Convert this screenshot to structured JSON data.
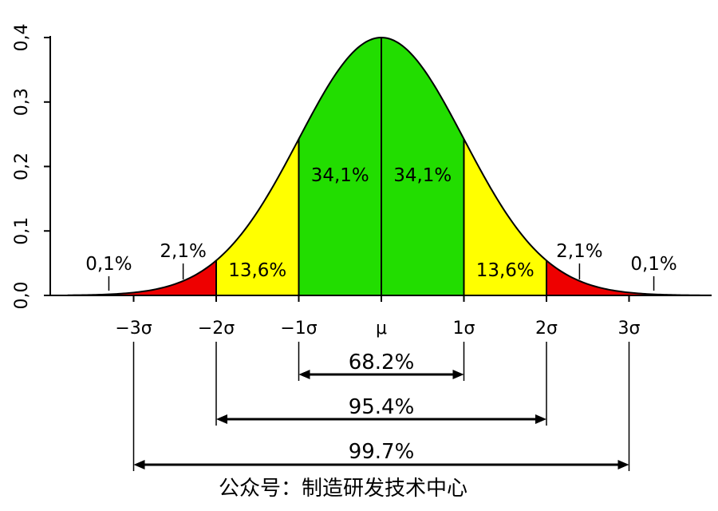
{
  "chart_data": {
    "type": "area",
    "title": "",
    "xlabel": "",
    "ylabel": "",
    "xlim": [
      -3.8,
      4.0
    ],
    "ylim": [
      0,
      0.4
    ],
    "grid": false,
    "y_ticks": [
      {
        "value": 0.0,
        "label": "0,0"
      },
      {
        "value": 0.1,
        "label": "0,1"
      },
      {
        "value": 0.2,
        "label": "0,2"
      },
      {
        "value": 0.3,
        "label": "0,3"
      },
      {
        "value": 0.4,
        "label": "0,4"
      }
    ],
    "x_ticks": [
      {
        "value": -3,
        "label": "−3σ"
      },
      {
        "value": -2,
        "label": "−2σ"
      },
      {
        "value": -1,
        "label": "−1σ"
      },
      {
        "value": 0,
        "label": "μ"
      },
      {
        "value": 1,
        "label": "1σ"
      },
      {
        "value": 2,
        "label": "2σ"
      },
      {
        "value": 3,
        "label": "3σ"
      }
    ],
    "curve": "standard normal pdf",
    "regions": [
      {
        "from": -2,
        "to": -1,
        "color": "#ffff00",
        "label": "13,6%"
      },
      {
        "from": -1,
        "to": 0,
        "color": "#22dd00",
        "label": "34,1%"
      },
      {
        "from": 0,
        "to": 1,
        "color": "#22dd00",
        "label": "34,1%"
      },
      {
        "from": 1,
        "to": 2,
        "color": "#ffff00",
        "label": "13,6%"
      },
      {
        "from": -3,
        "to": -2,
        "color": "#ee0000",
        "label": "2,1%"
      },
      {
        "from": 2,
        "to": 3,
        "color": "#ee0000",
        "label": "2,1%"
      },
      {
        "from": -3.8,
        "to": -3,
        "color": "#ee0000",
        "label": "0,1%"
      },
      {
        "from": 3,
        "to": 4.0,
        "color": "#ee0000",
        "label": "0,1%"
      }
    ],
    "pointer_labels": [
      {
        "x": -2.4,
        "label": "2,1%"
      },
      {
        "x": 2.4,
        "label": "2,1%"
      },
      {
        "x": -3.3,
        "label": "0,1%"
      },
      {
        "x": 3.3,
        "label": "0,1%"
      }
    ],
    "bands": [
      {
        "from": -1,
        "to": 1,
        "label": "68.2%"
      },
      {
        "from": -2,
        "to": 2,
        "label": "95.4%"
      },
      {
        "from": -3,
        "to": 3,
        "label": "99.7%"
      }
    ],
    "colors": {
      "background": "#ffffff",
      "green": "#22dd00",
      "yellow": "#ffff00",
      "red": "#ee0000",
      "ink": "#000000"
    }
  },
  "footer": {
    "text": "公众号：制造研发技术中心"
  }
}
